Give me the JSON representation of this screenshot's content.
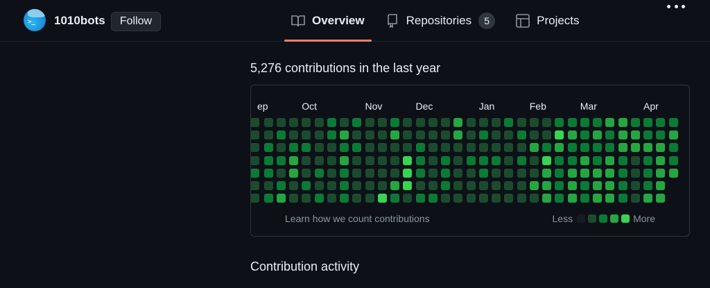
{
  "header": {
    "username": "1010bots",
    "avatar_icon": "robot-avatar-icon",
    "avatar_prompt": ">_",
    "follow_label": "Follow",
    "more_icon": "kebab-horizontal-icon"
  },
  "tabs": [
    {
      "label": "Overview",
      "icon": "book-icon",
      "active": true
    },
    {
      "label": "Repositories",
      "icon": "repo-icon",
      "count": "5"
    },
    {
      "label": "Projects",
      "icon": "table-icon"
    }
  ],
  "contributions": {
    "title": "5,276 contributions in the last year",
    "learn_link": "Learn how we count contributions",
    "legend_less": "Less",
    "legend_more": "More"
  },
  "colors": {
    "accent_underline": "#f78166",
    "levels": [
      "#161b22",
      "#1b4b2e",
      "#0b7a35",
      "#26a641",
      "#39d353"
    ]
  },
  "activity_title": "Contribution activity",
  "chart_data": {
    "type": "heatmap",
    "title": "5,276 contributions in the last year",
    "month_labels": [
      {
        "label": "ep",
        "col": 0
      },
      {
        "label": "Oct",
        "col": 4
      },
      {
        "label": "Nov",
        "col": 9
      },
      {
        "label": "Dec",
        "col": 13
      },
      {
        "label": "Jan",
        "col": 18
      },
      {
        "label": "Feb",
        "col": 22
      },
      {
        "label": "Mar",
        "col": 26
      },
      {
        "label": "Apr",
        "col": 31
      }
    ],
    "rows": 7,
    "columns": 34,
    "levels_legend": [
      "Less",
      0,
      1,
      2,
      3,
      4,
      "More"
    ],
    "grid": [
      [
        1,
        1,
        1,
        1,
        1,
        1,
        2,
        1,
        2,
        1,
        1,
        2,
        1,
        1,
        1,
        1,
        3,
        1,
        1,
        1,
        2,
        1,
        1,
        1,
        2,
        2,
        2,
        2,
        3,
        3,
        2,
        2,
        2,
        2
      ],
      [
        1,
        1,
        2,
        1,
        1,
        1,
        2,
        3,
        1,
        1,
        1,
        3,
        1,
        1,
        1,
        1,
        3,
        1,
        2,
        1,
        1,
        2,
        1,
        1,
        4,
        3,
        2,
        3,
        2,
        3,
        3,
        2,
        2,
        3
      ],
      [
        1,
        2,
        1,
        2,
        2,
        1,
        1,
        2,
        2,
        1,
        1,
        1,
        1,
        2,
        1,
        1,
        1,
        1,
        1,
        1,
        1,
        1,
        3,
        2,
        3,
        2,
        2,
        2,
        2,
        3,
        3,
        3,
        3,
        2
      ],
      [
        1,
        2,
        2,
        3,
        1,
        1,
        1,
        3,
        1,
        1,
        1,
        1,
        4,
        2,
        1,
        2,
        1,
        2,
        2,
        2,
        1,
        2,
        1,
        4,
        2,
        2,
        3,
        2,
        3,
        2,
        1,
        2,
        3,
        2
      ],
      [
        2,
        2,
        1,
        3,
        1,
        2,
        1,
        2,
        1,
        1,
        1,
        1,
        4,
        2,
        1,
        2,
        1,
        1,
        2,
        1,
        1,
        1,
        1,
        3,
        2,
        3,
        3,
        3,
        3,
        2,
        1,
        2,
        3,
        3
      ],
      [
        1,
        1,
        2,
        1,
        2,
        1,
        1,
        2,
        1,
        1,
        1,
        3,
        4,
        1,
        1,
        2,
        1,
        1,
        1,
        1,
        1,
        1,
        3,
        3,
        2,
        3,
        2,
        3,
        3,
        2,
        1,
        2,
        3,
        null
      ],
      [
        1,
        2,
        3,
        1,
        1,
        2,
        1,
        2,
        1,
        1,
        4,
        2,
        1,
        2,
        2,
        1,
        1,
        1,
        1,
        1,
        1,
        1,
        1,
        3,
        2,
        3,
        2,
        3,
        3,
        2,
        1,
        3,
        3,
        null
      ]
    ]
  }
}
